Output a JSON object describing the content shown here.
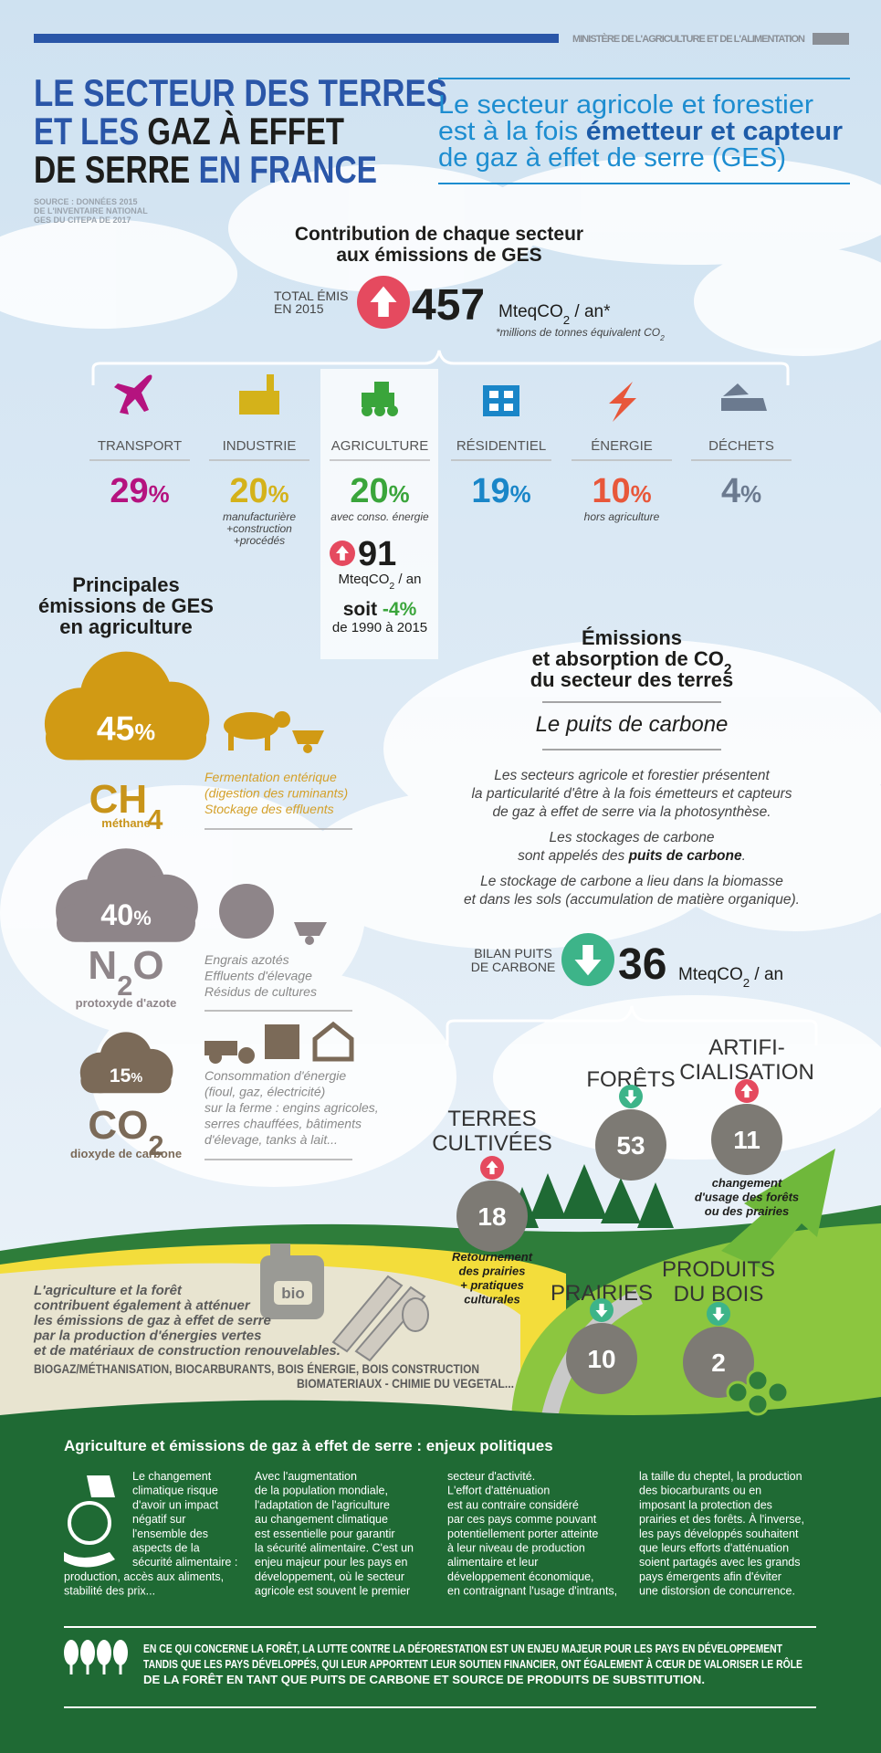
{
  "header": {
    "ministry": "MINISTÈRE DE L'AGRICULTURE ET DE L'ALIMENTATION",
    "title": [
      [
        "LE SECTEUR DES TERRES"
      ],
      [
        "ET LES ",
        "GAZ À EFFET"
      ],
      [
        "DE SERRE ",
        "EN FRANCE"
      ]
    ],
    "source": [
      "SOURCE : DONNÉES 2015",
      "DE L'INVENTAIRE NATIONAL",
      "GES DU CITEPA DE 2017"
    ],
    "subtitle": [
      [
        "Le secteur agricole et forestier"
      ],
      [
        "est à la fois ",
        "émetteur et capteur"
      ],
      [
        "de gaz à effet de serre (GES)"
      ]
    ]
  },
  "contribution": {
    "title": [
      "Contribution de chaque secteur",
      "aux émissions de GES"
    ],
    "total_label": [
      "TOTAL ÉMIS",
      "EN 2015"
    ],
    "total_value": "457",
    "unit": [
      "MteqCO",
      "2",
      " / an*"
    ],
    "footnote": [
      "*millions de tonnes équivalent CO",
      "2"
    ],
    "sectors": [
      {
        "label": "TRANSPORT",
        "value": [
          "29",
          "%"
        ],
        "note": []
      },
      {
        "label": "INDUSTRIE",
        "value": [
          "20",
          "%"
        ],
        "note": [
          "manufacturière",
          "+construction",
          "+procédés"
        ]
      },
      {
        "label": "AGRICULTURE",
        "value": [
          "20",
          "%"
        ],
        "note": [
          "avec conso. énergie"
        ]
      },
      {
        "label": "RÉSIDENTIEL",
        "value": [
          "19",
          "%"
        ],
        "note": []
      },
      {
        "label": "ÉNERGIE",
        "value": [
          "10",
          "%"
        ],
        "note": [
          "hors agriculture"
        ]
      },
      {
        "label": "DÉCHETS",
        "value": [
          "4",
          "%"
        ],
        "note": []
      }
    ]
  },
  "agriculture": {
    "value": "91",
    "unit": [
      "MteqCO",
      "2",
      " / an"
    ],
    "change": [
      "soit ",
      "-4%"
    ],
    "period": "de 1990 à 2015"
  },
  "agri_emissions": {
    "title": [
      "Principales",
      "émissions de GES",
      "en agriculture"
    ],
    "gases": [
      {
        "share": [
          "45",
          "%"
        ],
        "formula": [
          "CH",
          "4"
        ],
        "name": "méthane",
        "sources": [
          "Fermentation entérique",
          "(digestion des ruminants)",
          "Stockage des effluents"
        ]
      },
      {
        "share": [
          "40",
          "%"
        ],
        "formula": [
          "N",
          "2",
          "O"
        ],
        "name": "protoxyde d'azote",
        "sources": [
          "Engrais azotés",
          "Effluents d'élevage",
          "Résidus de cultures"
        ]
      },
      {
        "share": [
          "15",
          "%"
        ],
        "formula": [
          "CO",
          "2"
        ],
        "name": "dioxyde de carbone",
        "sources": [
          "Consommation d'énergie",
          "(fioul, gaz, électricité)",
          "sur la ferme : engins agricoles,",
          "serres chauffées, bâtiments",
          "d'élevage, tanks à lait..."
        ]
      }
    ]
  },
  "carbon_sink": {
    "title": [
      [
        "Émissions"
      ],
      [
        "et absorption de CO",
        "2"
      ],
      [
        "du secteur des terres"
      ]
    ],
    "subtitle": "Le puits de carbone",
    "paragraphs": [
      [
        [
          "Les secteurs agricole et forestier présentent"
        ],
        [
          "la particularité d'être à la fois émetteurs et capteurs"
        ],
        [
          "de gaz à effet de serre via la photosynthèse."
        ]
      ],
      [
        [
          "Les stockages de carbone"
        ],
        [
          "sont appelés des ",
          "puits de carbone",
          "."
        ]
      ],
      [
        [
          "Le stockage de carbone a lieu dans la biomasse"
        ],
        [
          "et dans les sols (accumulation de matière organique)."
        ]
      ]
    ],
    "balance_label": [
      "BILAN PUITS",
      "DE CARBONE"
    ],
    "balance_value": "36",
    "balance_unit": [
      "MteqCO",
      "2",
      " / an"
    ],
    "flows": [
      {
        "label": [
          "TERRES",
          "CULTIVÉES"
        ],
        "value": "18",
        "note": [
          "Retournement",
          "des prairies",
          "+ pratiques",
          "culturales"
        ]
      },
      {
        "label": [
          "FORÊTS"
        ],
        "value": "53",
        "note": []
      },
      {
        "label": [
          "ARTIFI-",
          "CIALISATION"
        ],
        "value": "11",
        "note": [
          "changement",
          "d'usage des forêts",
          "ou des prairies"
        ]
      },
      {
        "label": [
          "PRAIRIES"
        ],
        "value": "10",
        "note": []
      },
      {
        "label": [
          "PRODUITS",
          "DU BOIS"
        ],
        "value": "2",
        "note": []
      }
    ]
  },
  "mitigation": {
    "bio_label": "bio",
    "text": [
      "L'agriculture et la forêt",
      "contribuent également à atténuer",
      "les émissions de gaz à effet de serre",
      "par la production d'énergies vertes",
      "et de matériaux de construction renouvelables."
    ],
    "products": [
      "BIOGAZ/MÉTHANISATION, BIOCARBURANTS, BOIS ÉNERGIE, BOIS CONSTRUCTION",
      "BIOMATERIAUX - CHIMIE DU VEGETAL..."
    ]
  },
  "policy": {
    "title": "Agriculture et émissions de gaz à effet de serre : enjeux politiques",
    "columns": [
      [
        "Le changement",
        "climatique risque",
        "d'avoir un impact",
        "négatif sur",
        "l'ensemble des",
        "aspects de la",
        "sécurité alimentaire :",
        "production, accès aux aliments,",
        "stabilité des prix..."
      ],
      [
        "Avec l'augmentation",
        "de la population mondiale,",
        "l'adaptation de l'agriculture",
        "au changement climatique",
        "est essentielle pour garantir",
        "la sécurité alimentaire. C'est un",
        "enjeu majeur pour les pays en",
        "développement, où le secteur",
        "agricole est souvent le premier"
      ],
      [
        "secteur d'activité.",
        "L'effort d'atténuation",
        "est au contraire considéré",
        "par ces pays comme pouvant",
        "potentiellement porter atteinte",
        "à leur niveau de production",
        "alimentaire et leur",
        "développement économique,",
        "en contraignant l'usage d'intrants,"
      ],
      [
        "la taille du cheptel, la production",
        "des biocarburants ou en",
        "imposant la protection des",
        "prairies et des forêts. À l'inverse,",
        "les pays développés souhaitent",
        "que leurs efforts d'atténuation",
        "soient partagés avec les grands",
        "pays émergents afin d'éviter",
        "une distorsion de concurrence."
      ]
    ],
    "footer": [
      "EN CE QUI CONCERNE LA FORÊT, LA LUTTE CONTRE LA DÉFORESTATION EST UN ENJEU MAJEUR POUR LES PAYS EN DÉVELOPPEMENT",
      "TANDIS QUE LES PAYS DÉVELOPPÉS, QUI LEUR APPORTENT LEUR SOUTIEN FINANCIER, ONT ÉGALEMENT À CŒUR DE VALORISER LE RÔLE",
      "DE LA FORÊT EN TANT QUE PUITS DE CARBONE ET SOURCE DE PRODUITS DE SUBSTITUTION."
    ]
  }
}
